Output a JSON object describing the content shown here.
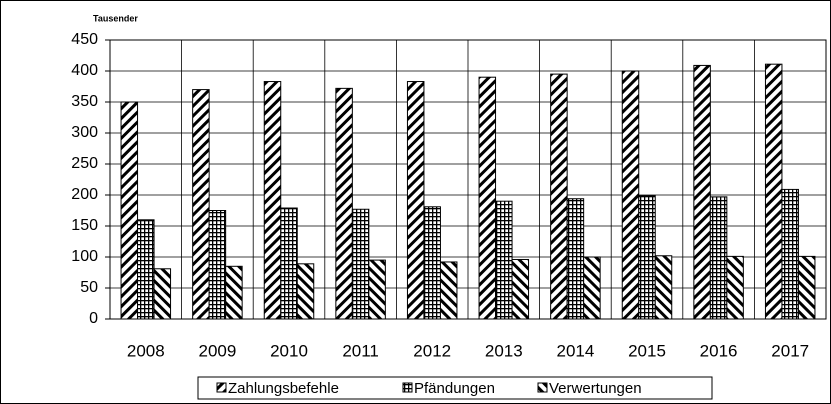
{
  "chart_data": {
    "type": "bar",
    "y_axis_label": "Tausender",
    "categories": [
      "2008",
      "2009",
      "2010",
      "2011",
      "2012",
      "2013",
      "2014",
      "2015",
      "2016",
      "2017"
    ],
    "series": [
      {
        "name": "Zahlungsbefehle",
        "color": "#000000",
        "pattern": "forward-diagonal",
        "values": [
          350,
          370,
          383,
          372,
          383,
          390,
          395,
          400,
          409,
          411
        ]
      },
      {
        "name": "Pfändungen",
        "color": "#000000",
        "pattern": "grid",
        "values": [
          160,
          175,
          179,
          177,
          181,
          190,
          194,
          199,
          197,
          209
        ]
      },
      {
        "name": "Verwertungen",
        "color": "#000000",
        "pattern": "backward-diagonal",
        "values": [
          81,
          85,
          89,
          95,
          92,
          96,
          100,
          102,
          101,
          101
        ]
      }
    ],
    "ylim": [
      0,
      450
    ],
    "yticks": [
      0,
      50,
      100,
      150,
      200,
      250,
      300,
      350,
      400,
      450
    ],
    "grid": true,
    "legend": "bottom"
  }
}
